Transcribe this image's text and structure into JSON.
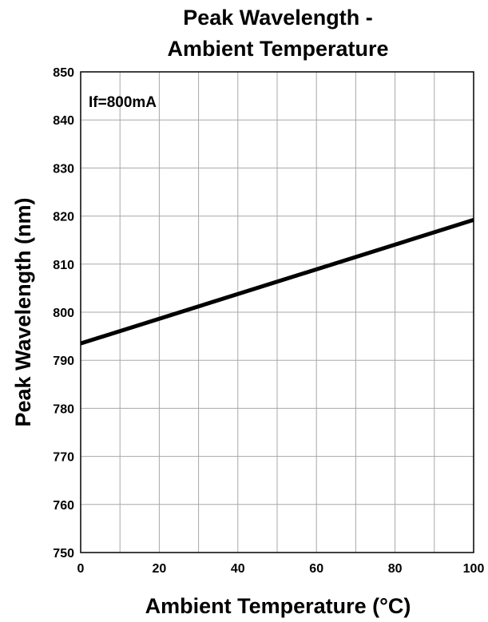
{
  "chart_data": {
    "type": "line",
    "title": [
      "Peak Wavelength -",
      "Ambient Temperature"
    ],
    "xlabel": "Ambient Temperature (°C)",
    "ylabel": "Peak Wavelength (nm)",
    "xlim": [
      0,
      100
    ],
    "ylim": [
      750,
      850
    ],
    "xticks": [
      0,
      20,
      40,
      60,
      80,
      100
    ],
    "yticks": [
      750,
      760,
      770,
      780,
      790,
      800,
      810,
      820,
      830,
      840,
      850
    ],
    "grid": true,
    "annotation": "If=800mA",
    "series": [
      {
        "x": [
          0,
          100
        ],
        "y": [
          793.5,
          819.2
        ],
        "color": "#000000"
      }
    ]
  }
}
